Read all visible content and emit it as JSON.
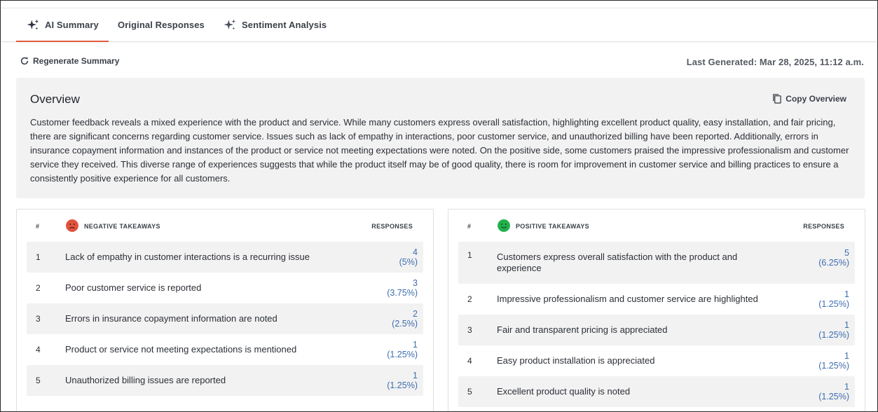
{
  "tabs": [
    {
      "label": "AI Summary",
      "icon": "sparkle-icon",
      "active": true
    },
    {
      "label": "Original Responses"
    },
    {
      "label": "Sentiment Analysis",
      "icon": "sparkle-icon"
    }
  ],
  "toolbar": {
    "regenerate_label": "Regenerate Summary",
    "last_generated": "Last Generated: Mar 28, 2025, 11:12 a.m."
  },
  "overview": {
    "title": "Overview",
    "copy_label": "Copy Overview",
    "text": "Customer feedback reveals a mixed experience with the product and service. While many customers express overall satisfaction, highlighting excellent product quality, easy installation, and fair pricing, there are significant concerns regarding customer service. Issues such as lack of empathy in interactions, poor customer service, and unauthorized billing have been reported. Additionally, errors in insurance copayment information and instances of the product or service not meeting expectations were noted. On the positive side, some customers praised the impressive professionalism and customer service they received. This diverse range of experiences suggests that while the product itself may be of good quality, there is room for improvement in customer service and billing practices to ensure a consistently positive experience for all customers."
  },
  "negative": {
    "col_num": "#",
    "title": "NEGATIVE TAKEAWAYS",
    "col_responses": "RESPONSES",
    "face_color": "#e0533d",
    "rows": [
      {
        "num": "1",
        "text": "Lack of empathy in customer interactions is a recurring issue",
        "count": "4",
        "pct": "(5%)"
      },
      {
        "num": "2",
        "text": "Poor customer service is reported",
        "count": "3",
        "pct": "(3.75%)"
      },
      {
        "num": "3",
        "text": "Errors in insurance copayment information are noted",
        "count": "2",
        "pct": "(2.5%)"
      },
      {
        "num": "4",
        "text": "Product or service not meeting expectations is mentioned",
        "count": "1",
        "pct": "(1.25%)"
      },
      {
        "num": "5",
        "text": "Unauthorized billing issues are reported",
        "count": "1",
        "pct": "(1.25%)"
      }
    ]
  },
  "positive": {
    "col_num": "#",
    "title": "POSITIVE TAKEAWAYS",
    "col_responses": "RESPONSES",
    "face_color": "#22b14c",
    "rows": [
      {
        "num": "1",
        "text": "Customers express overall satisfaction with the product and experience",
        "count": "5",
        "pct": "(6.25%)"
      },
      {
        "num": "2",
        "text": "Impressive professionalism and customer service are highlighted",
        "count": "1",
        "pct": "(1.25%)"
      },
      {
        "num": "3",
        "text": "Fair and transparent pricing is appreciated",
        "count": "1",
        "pct": "(1.25%)"
      },
      {
        "num": "4",
        "text": "Easy product installation is appreciated",
        "count": "1",
        "pct": "(1.25%)"
      },
      {
        "num": "5",
        "text": "Excellent product quality is noted",
        "count": "1",
        "pct": "(1.25%)"
      }
    ]
  }
}
